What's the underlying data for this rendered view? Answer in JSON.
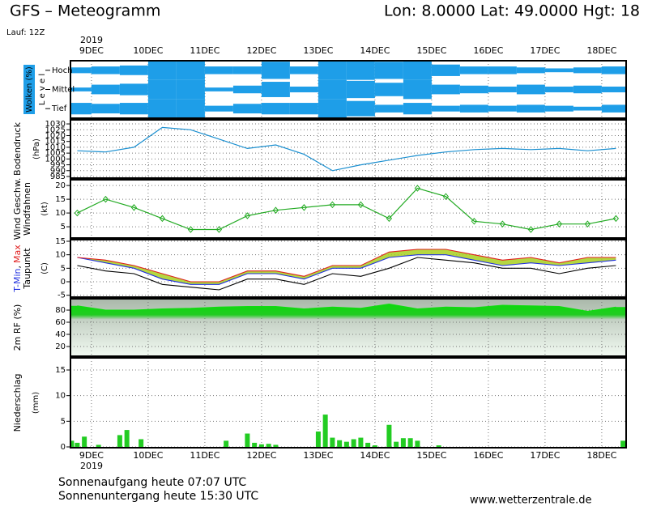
{
  "header": {
    "title": "GFS – Meteogramm",
    "location": "Lon: 8.0000  Lat: 49.0000  Hgt: 18",
    "run": "Lauf: 12Z"
  },
  "x_axis": {
    "year": "2019",
    "xlim": [
      -0.37,
      9.43
    ],
    "xticks": [
      {
        "value": 0,
        "label": "9DEC"
      },
      {
        "value": 1,
        "label": "10DEC"
      },
      {
        "value": 2,
        "label": "11DEC"
      },
      {
        "value": 3,
        "label": "12DEC"
      },
      {
        "value": 4,
        "label": "13DEC"
      },
      {
        "value": 5,
        "label": "14DEC"
      },
      {
        "value": 6,
        "label": "15DEC"
      },
      {
        "value": 7,
        "label": "16DEC"
      },
      {
        "value": 8,
        "label": "17DEC"
      },
      {
        "value": 9,
        "label": "18DEC"
      }
    ]
  },
  "chart_data": [
    {
      "type": "cloud-levels",
      "label": "Wolken (%)",
      "axis_label": "L e v e l",
      "x": [
        -0.25,
        0.25,
        0.75,
        1.25,
        1.75,
        2.25,
        2.75,
        3.25,
        3.75,
        4.25,
        4.75,
        5.25,
        5.75,
        6.25,
        6.75,
        7.25,
        7.75,
        8.25,
        8.75,
        9.25
      ],
      "series": [
        {
          "name": "Hoch",
          "color": "#1e9ee8",
          "values": [
            30,
            40,
            50,
            100,
            100,
            40,
            40,
            90,
            40,
            100,
            100,
            90,
            100,
            60,
            40,
            40,
            30,
            20,
            30,
            40
          ]
        },
        {
          "name": "Mittel",
          "color": "#1e9ee8",
          "values": [
            20,
            50,
            60,
            100,
            100,
            20,
            40,
            80,
            30,
            100,
            90,
            70,
            100,
            50,
            40,
            30,
            50,
            30,
            40,
            30
          ]
        },
        {
          "name": "Tief",
          "color": "#1e9ee8",
          "values": [
            60,
            50,
            60,
            100,
            100,
            30,
            50,
            60,
            60,
            100,
            80,
            40,
            60,
            30,
            40,
            30,
            40,
            30,
            20,
            40
          ]
        }
      ]
    },
    {
      "type": "line",
      "ylabel": "Bodendruck",
      "yunit": "(hPa)",
      "ylim": [
        983.6,
        1033.5
      ],
      "yticks": [
        985,
        990,
        995,
        1000,
        1005,
        1010,
        1015,
        1020,
        1025,
        1030
      ],
      "grid": true,
      "color": "#1a8fd0",
      "x": [
        -0.25,
        0.25,
        0.75,
        1.25,
        1.75,
        2.25,
        2.75,
        3.25,
        3.75,
        4.25,
        4.75,
        5.25,
        5.75,
        6.25,
        6.75,
        7.25,
        7.75,
        8.25,
        8.75,
        9.25
      ],
      "values": [
        1007,
        1006,
        1010,
        1027,
        1025,
        1017,
        1009,
        1012,
        1004,
        990,
        995,
        999,
        1003,
        1006,
        1008,
        1009,
        1008,
        1009,
        1007,
        1009
      ]
    },
    {
      "type": "line",
      "ylabel": "Windfahnen",
      "yunit": "(kt)",
      "ylim": [
        0.9,
        22.1
      ],
      "yticks": [
        5,
        10,
        15,
        20
      ],
      "grid": true,
      "x": [
        -0.25,
        0.25,
        0.75,
        1.25,
        1.75,
        2.25,
        2.75,
        3.25,
        3.75,
        4.25,
        4.75,
        5.25,
        5.75,
        6.25,
        6.75,
        7.25,
        7.75,
        8.25,
        8.75,
        9.25
      ],
      "series": [
        {
          "name": "Wind Geschw.",
          "color": "#22aa22",
          "marker": "diamond",
          "values": [
            10,
            15,
            12,
            8,
            4,
            4,
            9,
            11,
            12,
            13,
            13,
            8,
            19,
            16,
            7,
            6,
            4,
            6,
            6,
            8
          ]
        }
      ]
    },
    {
      "type": "band-lines",
      "label_separator": ",",
      "yunit": "(C)",
      "ylim": [
        -5.7,
        15.6
      ],
      "yticks": [
        -5,
        0,
        5,
        10,
        15
      ],
      "grid": true,
      "band_color": "#a8d020",
      "x": [
        -0.25,
        0.25,
        0.75,
        1.25,
        1.75,
        2.25,
        2.75,
        3.25,
        3.75,
        4.25,
        4.75,
        5.25,
        5.75,
        6.25,
        6.75,
        7.25,
        7.75,
        8.25,
        8.75,
        9.25
      ],
      "series": [
        {
          "name": "T-Min",
          "color": "#2030e0",
          "values": [
            9,
            7,
            5,
            1,
            -1,
            -1,
            3,
            3,
            1,
            5,
            5,
            9,
            10,
            10,
            8,
            6,
            7,
            6,
            7,
            8
          ]
        },
        {
          "name": "Max",
          "color": "#e02020",
          "values": [
            9,
            8,
            6,
            3,
            0,
            0,
            4,
            4,
            2,
            6,
            6,
            11,
            12,
            12,
            10,
            8,
            9,
            7,
            9,
            9
          ]
        },
        {
          "name": "Taupunkt",
          "color": "#000000",
          "values": [
            6,
            4,
            3,
            -1,
            -2,
            -3,
            1,
            1,
            -1,
            3,
            2,
            5,
            9,
            8,
            7,
            5,
            5,
            3,
            5,
            6
          ]
        }
      ]
    },
    {
      "type": "area",
      "ylabel": "2m RF (%)",
      "ylim": [
        4,
        98.7
      ],
      "yticks": [
        20,
        40,
        60,
        80
      ],
      "grid": true,
      "color": "#11dd11",
      "x": [
        -0.25,
        0.25,
        0.75,
        1.25,
        1.75,
        2.25,
        2.75,
        3.25,
        3.75,
        4.25,
        4.75,
        5.25,
        5.75,
        6.25,
        6.75,
        7.25,
        7.75,
        8.25,
        8.75,
        9.25
      ],
      "values": [
        87,
        80,
        80,
        82,
        83,
        85,
        86,
        86,
        82,
        85,
        83,
        90,
        82,
        85,
        84,
        88,
        87,
        86,
        78,
        85
      ]
    },
    {
      "type": "bar",
      "ylabel": "Niederschlag",
      "yunit": "(mm)",
      "ylim": [
        -0.16,
        17.37
      ],
      "yticks": [
        0,
        5,
        10,
        15
      ],
      "grid": true,
      "color": "#22cc22",
      "x": [
        -0.35,
        -0.25,
        -0.125,
        0.125,
        0.5,
        0.625,
        0.875,
        2.375,
        2.75,
        2.875,
        3.0,
        3.125,
        3.25,
        4.0,
        4.125,
        4.25,
        4.375,
        4.5,
        4.625,
        4.75,
        4.875,
        5.0,
        5.25,
        5.375,
        5.5,
        5.625,
        5.75,
        6.125,
        9.375
      ],
      "values": [
        1.2,
        0.8,
        2,
        0.4,
        2.3,
        3.3,
        1.5,
        1.2,
        2.6,
        0.8,
        0.5,
        0.6,
        0.4,
        3,
        6.3,
        1.8,
        1.3,
        1,
        1.5,
        1.8,
        0.8,
        0.3,
        4.3,
        1,
        1.7,
        1.7,
        1.2,
        0.3,
        1.2
      ]
    }
  ],
  "footer": {
    "sunrise": "Sonnenaufgang heute 07:07 UTC",
    "sunset": "Sonnenuntergang heute 15:30 UTC",
    "website": "www.wetterzentrale.de"
  }
}
